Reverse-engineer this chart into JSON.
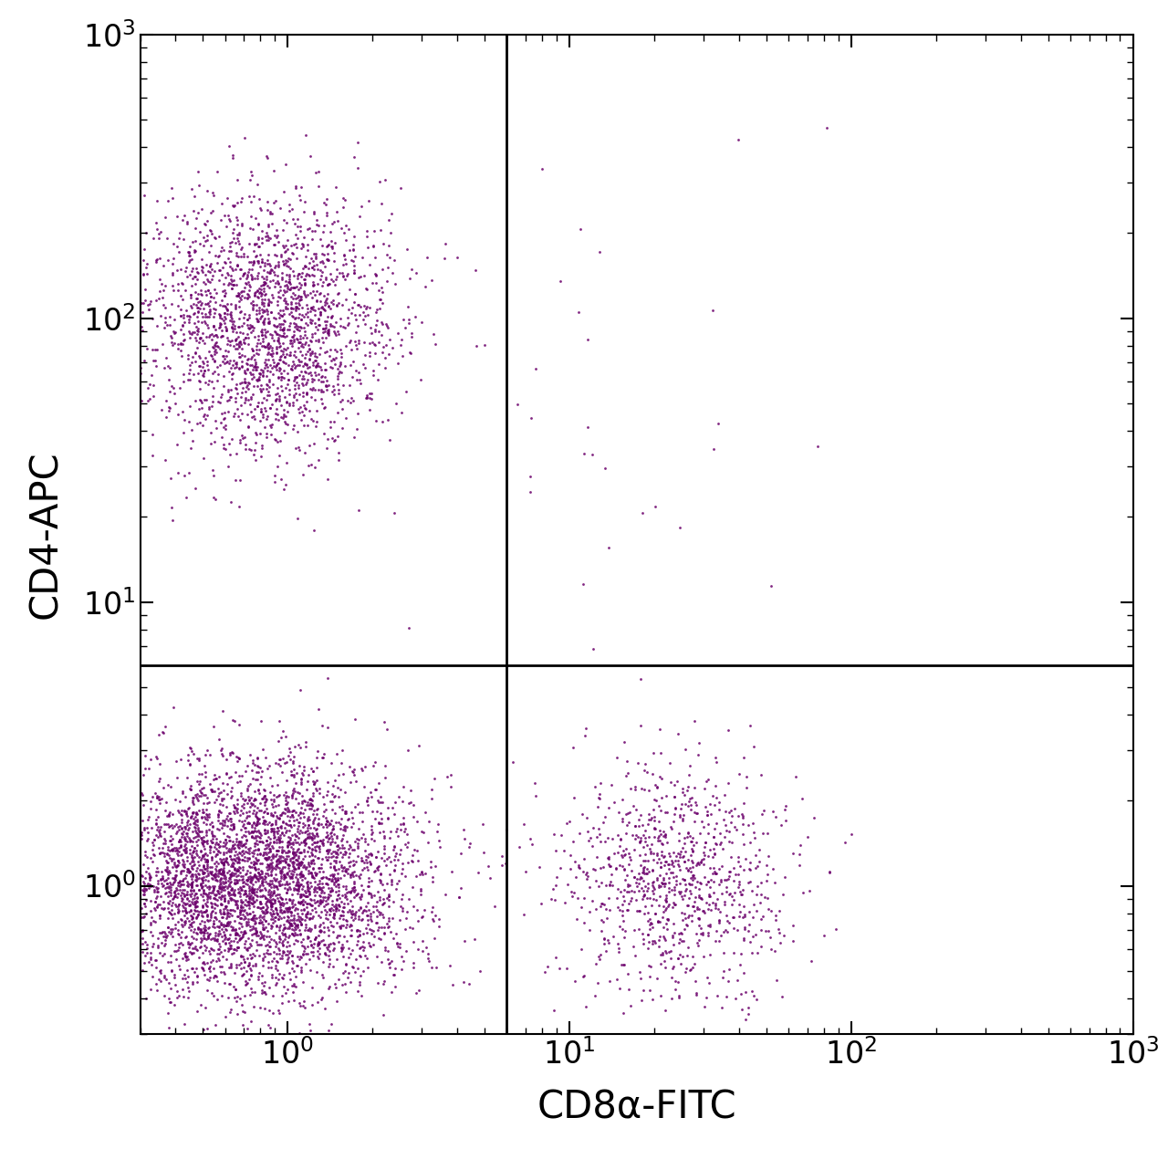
{
  "title": "",
  "xlabel": "CD8α-FITC",
  "ylabel": "CD4-APC",
  "xlim": [
    0.3,
    1000
  ],
  "ylim": [
    0.3,
    1000
  ],
  "dot_color": "#6B006B",
  "dot_alpha": 0.85,
  "dot_size": 4.0,
  "gate_x": 6.0,
  "gate_y": 6.0,
  "background_color": "#ffffff",
  "populations": {
    "CD4pos_CD8neg": {
      "n": 2200,
      "x_center_log": -0.08,
      "x_spread_log": 0.22,
      "y_center_log": 1.98,
      "y_spread_log": 0.22
    },
    "CD4neg_CD8neg": {
      "n": 4500,
      "x_center_log": -0.12,
      "x_spread_log": 0.28,
      "y_center_log": 0.02,
      "y_spread_log": 0.2
    },
    "CD4neg_CD8pos": {
      "n": 1000,
      "x_center_log": 1.38,
      "x_spread_log": 0.2,
      "y_center_log": 0.02,
      "y_spread_log": 0.2
    },
    "scatter_few": {
      "n": 35,
      "x_center_log": 1.1,
      "x_spread_log": 0.5,
      "y_center_log": 1.7,
      "y_spread_log": 0.45
    }
  },
  "seed": 42,
  "label_fontsize": 30,
  "tick_labelsize": 24
}
